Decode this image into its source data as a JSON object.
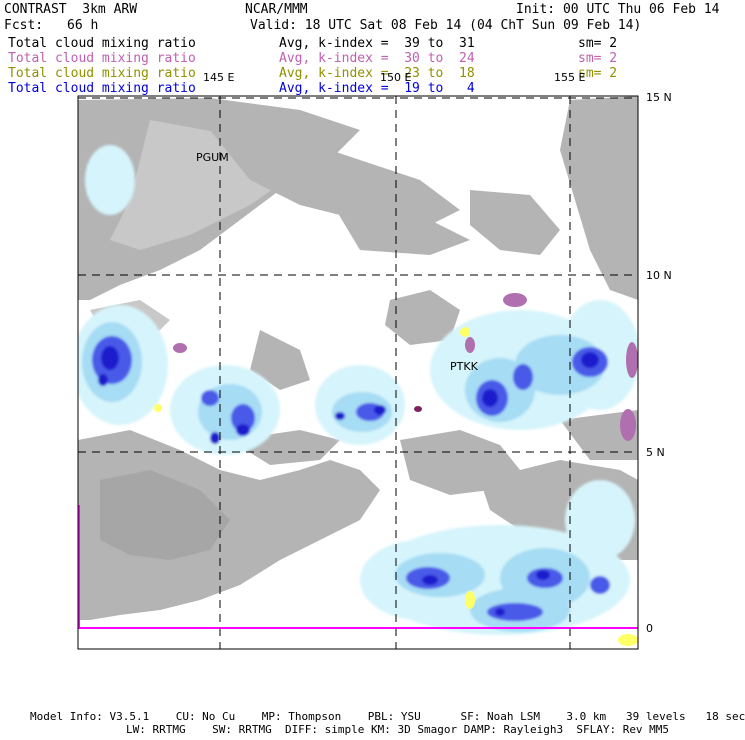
{
  "header": {
    "model": "CONTRAST  3km ARW",
    "org": "NCAR/MMM",
    "init": "Init: 00 UTC Thu 06 Feb 14",
    "fcst_label": "Fcst:",
    "fcst_value": "66 h",
    "valid": "Valid: 18 UTC Sat 08 Feb 14 (04 ChT Sun 09 Feb 14)"
  },
  "fields": [
    {
      "name": "Total cloud mixing ratio",
      "avg": "Avg, k-index =  39 to  31",
      "sm": "sm= 2",
      "color": "#000000"
    },
    {
      "name": "Total cloud mixing ratio",
      "avg": "Avg, k-index =  30 to  24",
      "sm": "sm= 2",
      "color": "#c060b0"
    },
    {
      "name": "Total cloud mixing ratio",
      "avg": "Avg, k-index =  23 to  18",
      "sm": "sm= 2",
      "color": "#909000"
    },
    {
      "name": "Total cloud mixing ratio",
      "avg": "Avg, k-index =  19 to   4",
      "sm": "",
      "color": "#0000e0"
    }
  ],
  "map": {
    "lon_labels": [
      "145 E",
      "150 E",
      "155 E"
    ],
    "lat_labels": [
      "15 N",
      "10 N",
      "5 N",
      "0"
    ],
    "stations": [
      "PGUM",
      "PTKK"
    ],
    "colors": {
      "land": "#b4b4b4",
      "cloud_light": "#d6f4fb",
      "cloud_mid": "#a6dcf4",
      "cloud_heavy": "#4a5ae8",
      "cloud_core": "#1c1ccc",
      "level2": "#b070b0",
      "level3": "#ffff66",
      "equator_line": "#ff00ff"
    }
  },
  "footer": {
    "line1": "Model Info: V3.5.1    CU: No Cu    MP: Thompson    PBL: YSU      SF: Noah LSM    3.0 km   39 levels   18 sec",
    "line2": "LW: RRTMG    SW: RRTMG  DIFF: simple KM: 3D Smagor DAMP: Rayleigh3  SFLAY: Rev MM5"
  }
}
